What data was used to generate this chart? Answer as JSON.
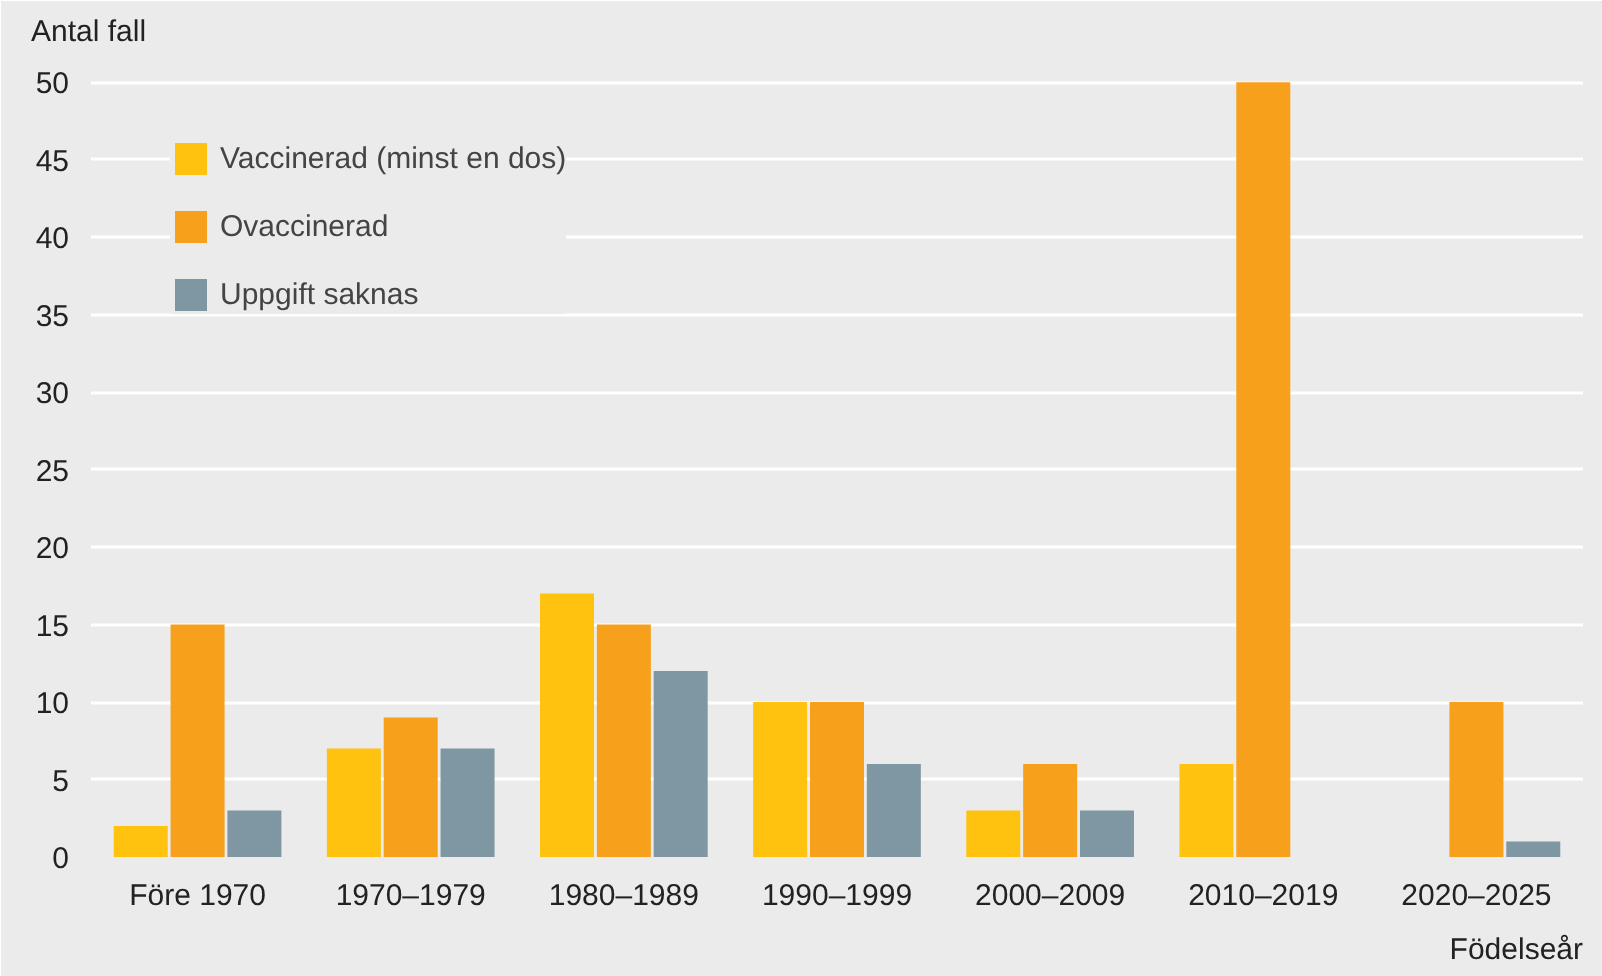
{
  "chart_data": {
    "type": "bar",
    "ylabel": "Antal fall",
    "xlabel": "Födelseår",
    "categories": [
      "Före 1970",
      "1970–1979",
      "1980–1989",
      "1990–1999",
      "2000–2009",
      "2010–2019",
      "2020–2025"
    ],
    "series": [
      {
        "name": "Vaccinerad (minst en dos)",
        "color": "#ffc20e",
        "values": [
          2,
          7,
          17,
          10,
          3,
          6,
          0
        ]
      },
      {
        "name": "Ovaccinerad",
        "color": "#f7a01c",
        "values": [
          15,
          9,
          15,
          10,
          6,
          50,
          10
        ]
      },
      {
        "name": "Uppgift saknas",
        "color": "#7e97a2",
        "values": [
          3,
          7,
          12,
          6,
          3,
          0,
          1
        ]
      }
    ],
    "ylim": [
      0,
      51.5
    ],
    "yticks": [
      0,
      5,
      10,
      15,
      20,
      25,
      30,
      35,
      40,
      45,
      50
    ],
    "grid": "y",
    "legend": "top left"
  }
}
